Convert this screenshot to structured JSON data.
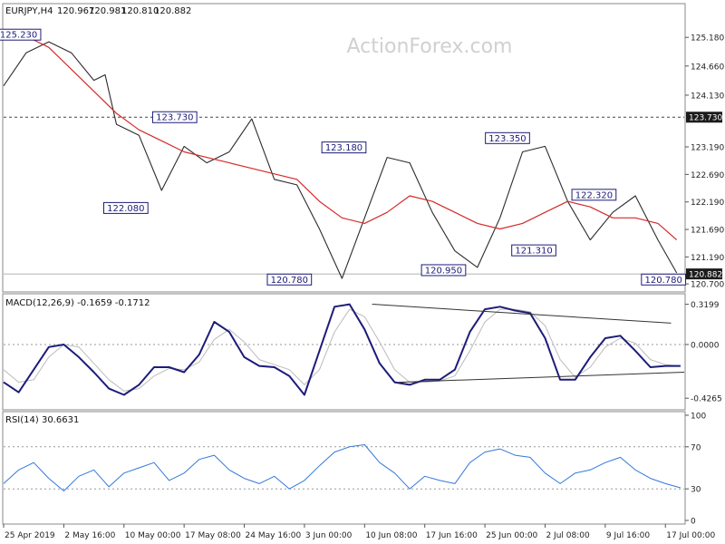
{
  "chart_data": [
    {
      "type": "candlestick",
      "title": "EURJPY,H4",
      "ohlc_readout": [
        "120.967",
        "120.981",
        "120.810",
        "120.882"
      ],
      "watermark": "ActionForex.com",
      "ylim": [
        120.62,
        125.53
      ],
      "yticks": [
        {
          "value": 125.18,
          "label": "125.180"
        },
        {
          "value": 124.66,
          "label": "124.660"
        },
        {
          "value": 124.13,
          "label": "124.130"
        },
        {
          "value": 123.19,
          "label": "123.190"
        },
        {
          "value": 122.69,
          "label": "122.690"
        },
        {
          "value": 122.19,
          "label": "122.190"
        },
        {
          "value": 121.69,
          "label": "121.690"
        },
        {
          "value": 121.19,
          "label": "121.190"
        },
        {
          "value": 120.7,
          "label": "120.700"
        }
      ],
      "reference_line": {
        "value": 123.73,
        "label": "123.730",
        "style": "dashed"
      },
      "current_price": {
        "value": 120.882,
        "label": "120.882"
      },
      "series": [
        {
          "role": "price",
          "color": "#2b2b2b",
          "x": [
            0,
            12,
            24,
            36,
            48,
            54,
            60,
            72,
            84,
            96,
            108,
            120,
            132,
            144,
            156,
            168,
            180,
            192,
            204,
            216,
            228,
            240,
            252,
            264,
            276,
            288,
            300,
            312,
            324,
            336,
            348,
            358
          ],
          "close": [
            124.3,
            124.9,
            125.1,
            124.9,
            124.4,
            124.5,
            123.6,
            123.4,
            122.4,
            123.2,
            122.9,
            123.1,
            123.7,
            122.6,
            122.5,
            121.7,
            120.8,
            121.9,
            123.0,
            122.9,
            122.0,
            121.3,
            121.0,
            121.9,
            123.1,
            123.2,
            122.2,
            121.5,
            122.0,
            122.3,
            121.5,
            120.9
          ]
        },
        {
          "role": "moving_average",
          "color": "#d42a2a",
          "x": [
            0,
            12,
            24,
            36,
            48,
            60,
            72,
            84,
            96,
            108,
            120,
            132,
            144,
            156,
            168,
            180,
            192,
            204,
            216,
            228,
            240,
            252,
            264,
            276,
            288,
            300,
            312,
            324,
            336,
            348,
            358
          ],
          "value": [
            125.3,
            125.2,
            125.0,
            124.6,
            124.2,
            123.8,
            123.5,
            123.3,
            123.1,
            123.0,
            122.9,
            122.8,
            122.7,
            122.6,
            122.2,
            121.9,
            121.8,
            122.0,
            122.3,
            122.2,
            122.0,
            121.8,
            121.7,
            121.8,
            122.0,
            122.2,
            122.1,
            121.9,
            121.9,
            121.8,
            121.5
          ]
        }
      ],
      "annotations": [
        {
          "label": "125.230",
          "x": 8,
          "y": 125.23
        },
        {
          "label": "123.730",
          "x": 91,
          "y": 123.73
        },
        {
          "label": "122.080",
          "x": 65,
          "y": 122.08
        },
        {
          "label": "123.180",
          "x": 181,
          "y": 123.18
        },
        {
          "label": "120.780",
          "x": 152,
          "y": 120.78
        },
        {
          "label": "120.950",
          "x": 234,
          "y": 120.95
        },
        {
          "label": "123.350",
          "x": 268,
          "y": 123.35
        },
        {
          "label": "121.310",
          "x": 282,
          "y": 121.31
        },
        {
          "label": "122.320",
          "x": 314,
          "y": 122.32
        },
        {
          "label": "120.780",
          "x": 351,
          "y": 120.78
        }
      ]
    },
    {
      "type": "line",
      "title": "MACD(12,26,9) -0.1659 -0.1712",
      "ylim": [
        -0.49,
        0.36
      ],
      "yticks": [
        {
          "value": 0.3199,
          "label": "0.3199"
        },
        {
          "value": 0.0,
          "label": "0.0000"
        },
        {
          "value": -0.4265,
          "label": "-0.4265"
        }
      ],
      "series": [
        {
          "role": "macd",
          "color": "#1c1c7a",
          "x": [
            0,
            8,
            16,
            24,
            32,
            40,
            48,
            56,
            64,
            72,
            80,
            88,
            96,
            104,
            112,
            120,
            128,
            136,
            144,
            152,
            160,
            168,
            176,
            184,
            192,
            200,
            208,
            216,
            224,
            232,
            240,
            248,
            256,
            264,
            272,
            280,
            288,
            296,
            304,
            312,
            320,
            328,
            336,
            344,
            352,
            360
          ],
          "value": [
            -0.3,
            -0.38,
            -0.2,
            -0.02,
            0.0,
            -0.1,
            -0.22,
            -0.35,
            -0.4,
            -0.32,
            -0.18,
            -0.18,
            -0.22,
            -0.08,
            0.18,
            0.1,
            -0.1,
            -0.17,
            -0.18,
            -0.25,
            -0.4,
            -0.05,
            0.3,
            0.32,
            0.12,
            -0.15,
            -0.3,
            -0.32,
            -0.28,
            -0.28,
            -0.2,
            0.1,
            0.28,
            0.3,
            0.27,
            0.25,
            0.05,
            -0.28,
            -0.28,
            -0.1,
            0.05,
            0.07,
            -0.05,
            -0.18,
            -0.17,
            -0.17
          ]
        },
        {
          "role": "signal",
          "color": "#bbbbbb",
          "x": [
            0,
            8,
            16,
            24,
            32,
            40,
            48,
            56,
            64,
            72,
            80,
            88,
            96,
            104,
            112,
            120,
            128,
            136,
            144,
            152,
            160,
            168,
            176,
            184,
            192,
            200,
            208,
            216,
            224,
            232,
            240,
            248,
            256,
            264,
            272,
            280,
            288,
            296,
            304,
            312,
            320,
            328,
            336,
            344,
            352,
            360
          ],
          "value": [
            -0.2,
            -0.3,
            -0.28,
            -0.1,
            0.0,
            -0.02,
            -0.15,
            -0.28,
            -0.37,
            -0.35,
            -0.25,
            -0.19,
            -0.2,
            -0.14,
            0.04,
            0.12,
            0.02,
            -0.12,
            -0.16,
            -0.2,
            -0.32,
            -0.2,
            0.1,
            0.28,
            0.22,
            0.02,
            -0.2,
            -0.3,
            -0.3,
            -0.29,
            -0.25,
            -0.05,
            0.18,
            0.28,
            0.28,
            0.26,
            0.15,
            -0.12,
            -0.26,
            -0.18,
            -0.02,
            0.05,
            0.01,
            -0.12,
            -0.16,
            -0.17
          ]
        }
      ],
      "trendlines": [
        {
          "x": [
            196,
            355
          ],
          "value": [
            0.32,
            0.17
          ],
          "color": "#333333"
        },
        {
          "x": [
            210,
            362
          ],
          "value": [
            -0.3,
            -0.22
          ],
          "color": "#333333"
        }
      ]
    },
    {
      "type": "line",
      "title": "RSI(14) 30.6631",
      "ylim": [
        0,
        100
      ],
      "yticks": [
        {
          "value": 100,
          "label": "100"
        },
        {
          "value": 70,
          "label": "70"
        },
        {
          "value": 30,
          "label": "30"
        },
        {
          "value": 0,
          "label": "0"
        }
      ],
      "levels": [
        70,
        30
      ],
      "series": [
        {
          "role": "rsi",
          "color": "#3377dd",
          "x": [
            0,
            8,
            16,
            24,
            32,
            40,
            48,
            56,
            64,
            72,
            80,
            88,
            96,
            104,
            112,
            120,
            128,
            136,
            144,
            152,
            160,
            168,
            176,
            184,
            192,
            200,
            208,
            216,
            224,
            232,
            240,
            248,
            256,
            264,
            272,
            280,
            288,
            296,
            304,
            312,
            320,
            328,
            336,
            344,
            352,
            360
          ],
          "value": [
            35,
            48,
            55,
            40,
            28,
            42,
            48,
            32,
            45,
            50,
            55,
            38,
            45,
            58,
            62,
            48,
            40,
            35,
            42,
            30,
            38,
            52,
            65,
            70,
            72,
            55,
            45,
            30,
            42,
            38,
            35,
            55,
            65,
            68,
            62,
            60,
            45,
            35,
            45,
            48,
            55,
            60,
            48,
            40,
            35,
            31
          ]
        }
      ]
    }
  ],
  "x_axis": {
    "ticks": [
      {
        "x": 0,
        "label": "25 Apr 2019"
      },
      {
        "x": 32,
        "label": "2 May 16:00"
      },
      {
        "x": 64,
        "label": "10 May 00:00"
      },
      {
        "x": 96,
        "label": "17 May 08:00"
      },
      {
        "x": 128,
        "label": "24 May 16:00"
      },
      {
        "x": 160,
        "label": "3 Jun 00:00"
      },
      {
        "x": 192,
        "label": "10 Jun 08:00"
      },
      {
        "x": 224,
        "label": "17 Jun 16:00"
      },
      {
        "x": 256,
        "label": "25 Jun 00:00"
      },
      {
        "x": 288,
        "label": "2 Jul 08:00"
      },
      {
        "x": 320,
        "label": "9 Jul 16:00"
      },
      {
        "x": 352,
        "label": "17 Jul 00:00"
      }
    ],
    "xlim": [
      0,
      362
    ]
  },
  "colors": {
    "axis_label_bg": "#1c1c1c",
    "annotation_border": "#1c1c7a",
    "annotation_text": "#1c1c7a",
    "watermark": "#d0d0d0"
  }
}
